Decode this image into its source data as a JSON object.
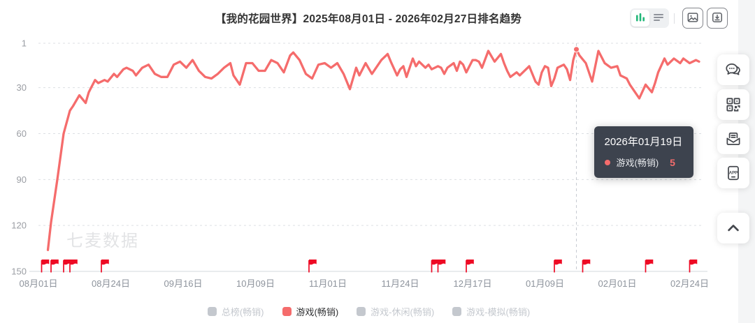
{
  "header": {
    "title": "【我的花园世界】2025年08月01日 - 2026年02月27日排名趋势",
    "controls": {
      "chart_view_icon": "bar-chart-icon",
      "table_view_icon": "list-icon",
      "export_image_icon": "image-icon",
      "download_icon": "download-icon",
      "chart_view_active": true
    }
  },
  "colors": {
    "line_salmon": "#f56c6c",
    "accent_green": "#22b779",
    "flag_red": "#ee0a24",
    "tooltip_bg": "#353b47",
    "inactive_gray": "#c4c8ce"
  },
  "chart_data": {
    "type": "line",
    "title": "【我的花园世界】2025年08月01日 - 2026年02月27日排名趋势",
    "watermark": "七麦数据",
    "y_inverted": true,
    "ylim": [
      1,
      150
    ],
    "y_ticks": [
      1,
      30,
      60,
      90,
      120,
      150
    ],
    "date_range": {
      "start": "2025-08-01",
      "end": "2026-02-27"
    },
    "x_ticks": [
      {
        "label": "08月01日",
        "date": "2025-08-01"
      },
      {
        "label": "08月24日",
        "date": "2025-08-24"
      },
      {
        "label": "09月16日",
        "date": "2025-09-16"
      },
      {
        "label": "10月09日",
        "date": "2025-10-09"
      },
      {
        "label": "11月01日",
        "date": "2025-11-01"
      },
      {
        "label": "11月24日",
        "date": "2025-11-24"
      },
      {
        "label": "12月17日",
        "date": "2025-12-17"
      },
      {
        "label": "01月09日",
        "date": "2026-01-09"
      },
      {
        "label": "02月01日",
        "date": "2026-02-01"
      },
      {
        "label": "02月24日",
        "date": "2026-02-24"
      }
    ],
    "flag_color": "#ee0a24",
    "flags": [
      "2025-08-02",
      "2025-08-05",
      "2025-08-09",
      "2025-08-11",
      "2025-08-21",
      "2025-10-26",
      "2025-12-04",
      "2025-12-06",
      "2025-12-15",
      "2026-01-12",
      "2026-01-21",
      "2026-02-10",
      "2026-02-24"
    ],
    "highlight": {
      "date": "2026-01-19",
      "rank": 5,
      "tooltip": {
        "title": "2026年01月19日",
        "series_label": "游戏(畅销)",
        "value": "5"
      }
    },
    "series": [
      {
        "name": "游戏(畅销)",
        "color": "#f56c6c",
        "points": [
          [
            "2025-08-04",
            136
          ],
          [
            "2025-08-05",
            118
          ],
          [
            "2025-08-07",
            90
          ],
          [
            "2025-08-09",
            60
          ],
          [
            "2025-08-11",
            45
          ],
          [
            "2025-08-12",
            42
          ],
          [
            "2025-08-14",
            35
          ],
          [
            "2025-08-16",
            40
          ],
          [
            "2025-08-17",
            33
          ],
          [
            "2025-08-19",
            25
          ],
          [
            "2025-08-20",
            27
          ],
          [
            "2025-08-22",
            25
          ],
          [
            "2025-08-23",
            26
          ],
          [
            "2025-08-25",
            21
          ],
          [
            "2025-08-26",
            23
          ],
          [
            "2025-08-28",
            18
          ],
          [
            "2025-08-29",
            17
          ],
          [
            "2025-08-31",
            19
          ],
          [
            "2025-09-01",
            22
          ],
          [
            "2025-09-03",
            17
          ],
          [
            "2025-09-05",
            15
          ],
          [
            "2025-09-07",
            21
          ],
          [
            "2025-09-09",
            23
          ],
          [
            "2025-09-11",
            23
          ],
          [
            "2025-09-13",
            15
          ],
          [
            "2025-09-15",
            13
          ],
          [
            "2025-09-17",
            17
          ],
          [
            "2025-09-19",
            12
          ],
          [
            "2025-09-21",
            19
          ],
          [
            "2025-09-23",
            23
          ],
          [
            "2025-09-25",
            24
          ],
          [
            "2025-09-27",
            21
          ],
          [
            "2025-09-29",
            17
          ],
          [
            "2025-10-01",
            14
          ],
          [
            "2025-10-02",
            22
          ],
          [
            "2025-10-04",
            28
          ],
          [
            "2025-10-06",
            14
          ],
          [
            "2025-10-08",
            14
          ],
          [
            "2025-10-10",
            19
          ],
          [
            "2025-10-12",
            19
          ],
          [
            "2025-10-14",
            12
          ],
          [
            "2025-10-16",
            14
          ],
          [
            "2025-10-18",
            20
          ],
          [
            "2025-10-20",
            9
          ],
          [
            "2025-10-21",
            7
          ],
          [
            "2025-10-23",
            12
          ],
          [
            "2025-10-25",
            21
          ],
          [
            "2025-10-27",
            24
          ],
          [
            "2025-10-29",
            15
          ],
          [
            "2025-10-31",
            14
          ],
          [
            "2025-11-02",
            17
          ],
          [
            "2025-11-04",
            14
          ],
          [
            "2025-11-06",
            21
          ],
          [
            "2025-11-08",
            31
          ],
          [
            "2025-11-10",
            17
          ],
          [
            "2025-11-11",
            22
          ],
          [
            "2025-11-13",
            14
          ],
          [
            "2025-11-15",
            21
          ],
          [
            "2025-11-17",
            15
          ],
          [
            "2025-11-18",
            12
          ],
          [
            "2025-11-20",
            8
          ],
          [
            "2025-11-21",
            13
          ],
          [
            "2025-11-23",
            22
          ],
          [
            "2025-11-24",
            18
          ],
          [
            "2025-11-25",
            16
          ],
          [
            "2025-11-26",
            23
          ],
          [
            "2025-11-28",
            11
          ],
          [
            "2025-11-29",
            16
          ],
          [
            "2025-11-30",
            13
          ],
          [
            "2025-12-02",
            17
          ],
          [
            "2025-12-03",
            15
          ],
          [
            "2025-12-04",
            18
          ],
          [
            "2025-12-06",
            16
          ],
          [
            "2025-12-07",
            17
          ],
          [
            "2025-12-08",
            21
          ],
          [
            "2025-12-09",
            17
          ],
          [
            "2025-12-11",
            14
          ],
          [
            "2025-12-12",
            19
          ],
          [
            "2025-12-13",
            13
          ],
          [
            "2025-12-14",
            15
          ],
          [
            "2025-12-15",
            20
          ],
          [
            "2025-12-16",
            16
          ],
          [
            "2025-12-17",
            12
          ],
          [
            "2025-12-18",
            12
          ],
          [
            "2025-12-19",
            13
          ],
          [
            "2025-12-20",
            17
          ],
          [
            "2025-12-22",
            6
          ],
          [
            "2025-12-24",
            13
          ],
          [
            "2025-12-26",
            8
          ],
          [
            "2025-12-27",
            14
          ],
          [
            "2025-12-28",
            19
          ],
          [
            "2025-12-29",
            23
          ],
          [
            "2025-12-31",
            20
          ],
          [
            "2026-01-01",
            22
          ],
          [
            "2026-01-02",
            20
          ],
          [
            "2026-01-04",
            16
          ],
          [
            "2026-01-06",
            26
          ],
          [
            "2026-01-07",
            28
          ],
          [
            "2026-01-08",
            20
          ],
          [
            "2026-01-09",
            16
          ],
          [
            "2026-01-10",
            17
          ],
          [
            "2026-01-11",
            29
          ],
          [
            "2026-01-12",
            24
          ],
          [
            "2026-01-13",
            17
          ],
          [
            "2026-01-14",
            16
          ],
          [
            "2026-01-15",
            15
          ],
          [
            "2026-01-16",
            18
          ],
          [
            "2026-01-17",
            25
          ],
          [
            "2026-01-18",
            12
          ],
          [
            "2026-01-19",
            5
          ],
          [
            "2026-01-20",
            9
          ],
          [
            "2026-01-22",
            14
          ],
          [
            "2026-01-24",
            26
          ],
          [
            "2026-01-26",
            6
          ],
          [
            "2026-01-28",
            14
          ],
          [
            "2026-01-30",
            17
          ],
          [
            "2026-02-01",
            16
          ],
          [
            "2026-02-02",
            22
          ],
          [
            "2026-02-04",
            24
          ],
          [
            "2026-02-05",
            28
          ],
          [
            "2026-02-07",
            34
          ],
          [
            "2026-02-08",
            37
          ],
          [
            "2026-02-10",
            28
          ],
          [
            "2026-02-12",
            33
          ],
          [
            "2026-02-13",
            27
          ],
          [
            "2026-02-14",
            20
          ],
          [
            "2026-02-16",
            11
          ],
          [
            "2026-02-17",
            15
          ],
          [
            "2026-02-19",
            11
          ],
          [
            "2026-02-21",
            14
          ],
          [
            "2026-02-22",
            11
          ],
          [
            "2026-02-24",
            14
          ],
          [
            "2026-02-26",
            12
          ],
          [
            "2026-02-27",
            13
          ]
        ]
      }
    ]
  },
  "legend": {
    "inactive_color": "#c4c8ce",
    "items": [
      {
        "label": "总榜(畅销)",
        "active": false
      },
      {
        "label": "游戏(畅销)",
        "active": true,
        "color": "#f56c6c"
      },
      {
        "label": "游戏-休闲(畅销)",
        "active": false
      },
      {
        "label": "游戏-模拟(畅销)",
        "active": false
      }
    ]
  },
  "sidebar": {
    "app_label": "APP",
    "buttons": [
      {
        "name": "feedback",
        "icon": "chat-bubble-icon"
      },
      {
        "name": "qrcode",
        "icon": "qr-code-icon"
      },
      {
        "name": "report-mail",
        "icon": "mail-icon"
      },
      {
        "name": "app-download",
        "icon": "app-phone-icon"
      },
      {
        "name": "back-to-top",
        "icon": "chevron-up-icon"
      }
    ]
  }
}
